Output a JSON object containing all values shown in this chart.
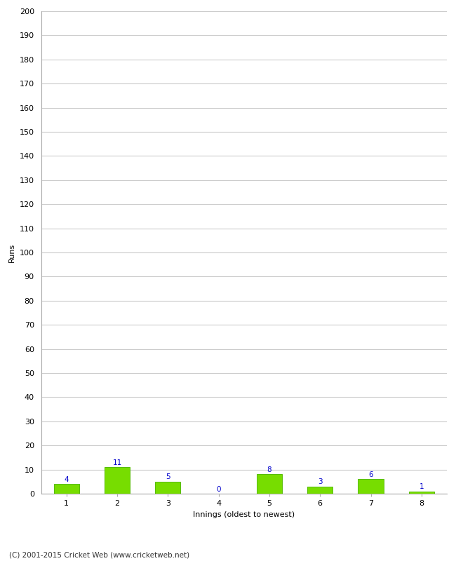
{
  "categories": [
    "1",
    "2",
    "3",
    "4",
    "5",
    "6",
    "7",
    "8"
  ],
  "values": [
    4,
    11,
    5,
    0,
    8,
    3,
    6,
    1
  ],
  "bar_color": "#77dd00",
  "bar_edge_color": "#55bb00",
  "label_color": "#0000cc",
  "xlabel": "Innings (oldest to newest)",
  "ylabel": "Runs",
  "ylim": [
    0,
    200
  ],
  "ytick_step": 10,
  "background_color": "#ffffff",
  "grid_color": "#cccccc",
  "footer_text": "(C) 2001-2015 Cricket Web (www.cricketweb.net)",
  "label_fontsize": 7.5,
  "axis_label_fontsize": 8,
  "tick_fontsize": 8,
  "footer_fontsize": 7.5
}
